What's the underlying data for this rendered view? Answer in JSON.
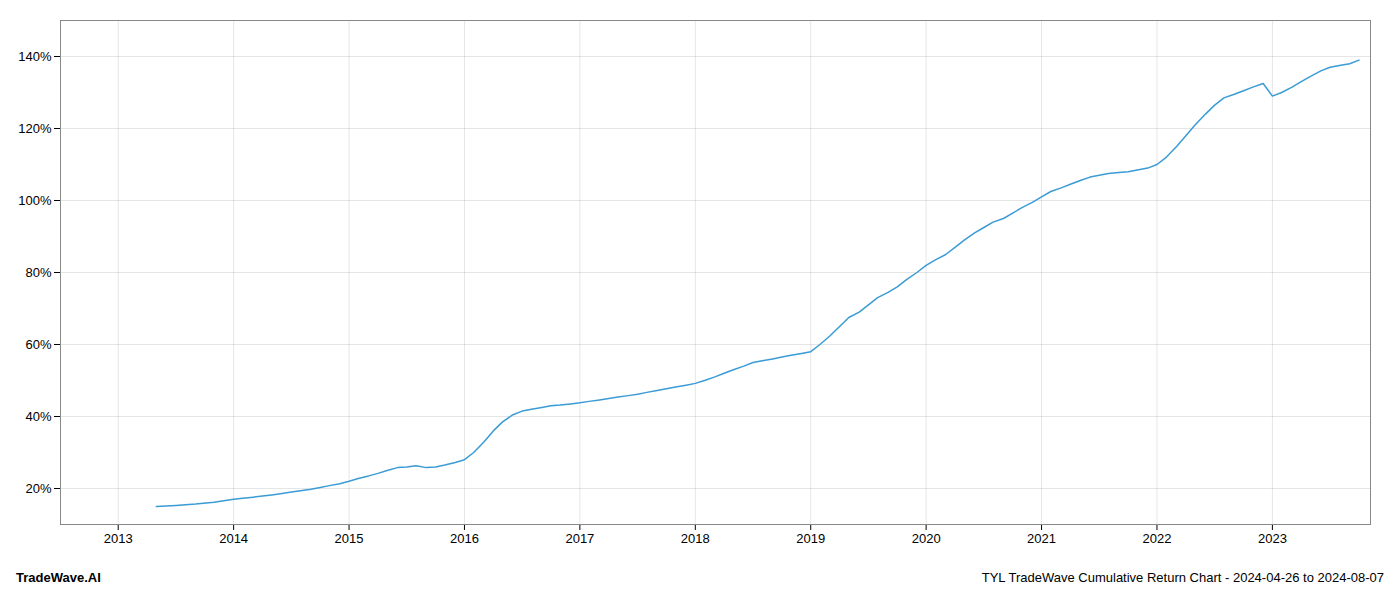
{
  "chart_data": {
    "type": "line",
    "title": "TYL TradeWave Cumulative Return Chart - 2024-04-26 to 2024-08-07",
    "annotations": [
      "TradeWave.AI"
    ],
    "color": "#3a9bd5",
    "grid": true,
    "x": [
      2013.33,
      2013.5,
      2013.67,
      2013.83,
      2014.0,
      2014.08,
      2014.17,
      2014.25,
      2014.33,
      2014.42,
      2014.5,
      2014.58,
      2014.67,
      2014.75,
      2014.83,
      2014.92,
      2015.0,
      2015.08,
      2015.17,
      2015.25,
      2015.33,
      2015.42,
      2015.5,
      2015.58,
      2015.67,
      2015.75,
      2015.83,
      2015.92,
      2016.0,
      2016.08,
      2016.17,
      2016.25,
      2016.33,
      2016.42,
      2016.5,
      2016.58,
      2016.67,
      2016.75,
      2016.83,
      2016.92,
      2017.0,
      2017.08,
      2017.17,
      2017.25,
      2017.33,
      2017.42,
      2017.5,
      2017.58,
      2017.67,
      2017.75,
      2017.83,
      2017.92,
      2018.0,
      2018.08,
      2018.17,
      2018.25,
      2018.33,
      2018.42,
      2018.5,
      2018.58,
      2018.67,
      2018.75,
      2018.83,
      2018.92,
      2019.0,
      2019.08,
      2019.17,
      2019.25,
      2019.33,
      2019.42,
      2019.5,
      2019.58,
      2019.67,
      2019.75,
      2019.83,
      2019.92,
      2020.0,
      2020.08,
      2020.17,
      2020.25,
      2020.33,
      2020.42,
      2020.5,
      2020.58,
      2020.67,
      2020.75,
      2020.83,
      2020.92,
      2021.0,
      2021.08,
      2021.17,
      2021.25,
      2021.33,
      2021.42,
      2021.5,
      2021.58,
      2021.67,
      2021.75,
      2021.83,
      2021.92,
      2022.0,
      2022.08,
      2022.17,
      2022.25,
      2022.33,
      2022.42,
      2022.5,
      2022.58,
      2022.67,
      2022.75,
      2022.83,
      2022.92,
      2023.0,
      2023.08,
      2023.17,
      2023.25,
      2023.33,
      2023.42,
      2023.5,
      2023.58,
      2023.67,
      2023.75
    ],
    "values": [
      15.0,
      15.3,
      15.7,
      16.2,
      17.0,
      17.3,
      17.6,
      17.9,
      18.2,
      18.6,
      19.0,
      19.4,
      19.8,
      20.3,
      20.8,
      21.3,
      22.0,
      22.8,
      23.5,
      24.2,
      25.0,
      25.8,
      26.0,
      26.3,
      25.8,
      26.0,
      26.5,
      27.2,
      28.0,
      30.0,
      33.0,
      36.0,
      38.5,
      40.5,
      41.5,
      42.0,
      42.5,
      43.0,
      43.2,
      43.5,
      43.8,
      44.2,
      44.6,
      45.0,
      45.4,
      45.8,
      46.2,
      46.7,
      47.2,
      47.7,
      48.2,
      48.7,
      49.2,
      50.0,
      51.0,
      52.0,
      53.0,
      54.0,
      55.0,
      55.5,
      56.0,
      56.5,
      57.0,
      57.5,
      58.0,
      60.0,
      62.5,
      65.0,
      67.5,
      69.0,
      71.0,
      73.0,
      74.5,
      76.0,
      78.0,
      80.0,
      82.0,
      83.5,
      85.0,
      87.0,
      89.0,
      91.0,
      92.5,
      94.0,
      95.0,
      96.5,
      98.0,
      99.5,
      101.0,
      102.5,
      103.5,
      104.5,
      105.5,
      106.5,
      107.0,
      107.5,
      107.8,
      108.0,
      108.5,
      109.0,
      110.0,
      112.0,
      115.0,
      118.0,
      121.0,
      124.0,
      126.5,
      128.5,
      129.5,
      130.5,
      131.5,
      132.5,
      129.0,
      130.0,
      131.5,
      133.0,
      134.5,
      136.0,
      137.0,
      137.5,
      138.0,
      139.0
    ],
    "xlim": [
      2012.5,
      2023.85
    ],
    "xticks": [
      2013,
      2014,
      2015,
      2016,
      2017,
      2018,
      2019,
      2020,
      2021,
      2022,
      2023
    ],
    "ylim": [
      10,
      150
    ],
    "yticks": [
      {
        "value": 20,
        "label": "20%"
      },
      {
        "value": 40,
        "label": "40%"
      },
      {
        "value": 60,
        "label": "60%"
      },
      {
        "value": 80,
        "label": "80%"
      },
      {
        "value": 100,
        "label": "100%"
      },
      {
        "value": 120,
        "label": "120%"
      },
      {
        "value": 140,
        "label": "140%"
      }
    ]
  }
}
